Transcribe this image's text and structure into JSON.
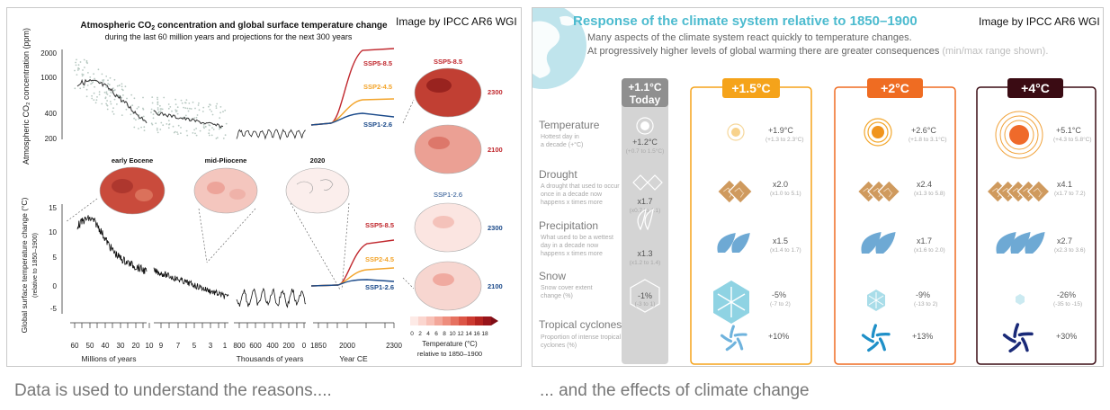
{
  "left": {
    "title_line1": "Atmospheric CO",
    "title_sub": "2",
    "title_line1_rest": " concentration and global surface temperature change",
    "title_line2": "during the last 60 million years and projections for the next 300 years",
    "credit": "Image by IPCC AR6 WGI",
    "co2_axis_label": "Atmospheric CO₂ concentration (ppm)",
    "co2_ticks": [
      "2000",
      "1000",
      "400",
      "200"
    ],
    "temp_axis_label": "Global surface temperature change (°C)",
    "temp_axis_sublabel": "(relative to 1850–1900)",
    "temp_ticks": [
      "15",
      "10",
      "5",
      "0",
      "-5"
    ],
    "periods": [
      "early Eocene",
      "mid-Pliocene",
      "2020"
    ],
    "scenarios_co2": [
      "SSP5-8.5",
      "SSP2-4.5",
      "SSP1-2.6"
    ],
    "scenarios_temp": [
      "SSP5-8.5",
      "SSP2-4.5",
      "SSP1-2.6"
    ],
    "map_scenario_top": "SSP5-8.5",
    "map_scenario_bottom": "SSP1-2.6",
    "map_years": [
      "2300",
      "2100",
      "2300",
      "2100"
    ],
    "x_ticks_myr": [
      "60",
      "50",
      "40",
      "30",
      "20",
      "10"
    ],
    "x_ticks_myr2": [
      "9",
      "7",
      "5",
      "3",
      "1"
    ],
    "x_ticks_kyr": [
      "800",
      "600",
      "400",
      "200",
      "0"
    ],
    "x_ticks_ce": [
      "1850",
      "2000",
      "2300"
    ],
    "x_label_myr": "Millions of years",
    "x_label_kyr": "Thousands of years",
    "x_label_ce": "Year CE",
    "colorbar_ticks": [
      "0",
      "2",
      "4",
      "6",
      "8",
      "10",
      "12",
      "14",
      "16",
      "18"
    ],
    "colorbar_label": "Temperature (°C)",
    "colorbar_sublabel": "relative to 1850–1900",
    "colors": {
      "ssp585": "#c0272d",
      "ssp245": "#f3a42a",
      "ssp126": "#1b4a8a"
    }
  },
  "right": {
    "title": "Response of the climate system relative to 1850–1900",
    "subtitle1": "Many aspects of the climate system react quickly to temperature changes.",
    "subtitle2": "At progressively higher levels of global warming there are greater consequences",
    "subtitle2_note": " (min/max range shown).",
    "credit": "Image by IPCC AR6 WGI",
    "today": {
      "value": "+1.1°C",
      "label": "Today"
    },
    "columns": [
      {
        "label": "+1.5°C",
        "color": "#f5a31a"
      },
      {
        "label": "+2°C",
        "color": "#ef6c22"
      },
      {
        "label": "+4°C",
        "color": "#3a0b13"
      }
    ],
    "rows": [
      {
        "title": "Temperature",
        "desc": [
          "Hottest day in",
          "a decade (+°C)"
        ],
        "icon": "sun-icon",
        "today": {
          "v": "+1.2°C",
          "r": "(+0.7 to 1.5°C)"
        },
        "vals": [
          {
            "v": "+1.9°C",
            "r": "(+1.3 to 2.3°C)"
          },
          {
            "v": "+2.6°C",
            "r": "(+1.8 to 3.1°C)"
          },
          {
            "v": "+5.1°C",
            "r": "(+4.3 to 5.8°C)"
          }
        ]
      },
      {
        "title": "Drought",
        "desc": [
          "A drought that used to occur",
          "once in a decade now",
          "happens x times more"
        ],
        "icon": "dry-soil-icon",
        "today": {
          "v": "x1.7",
          "r": "(x0.7 to 4.1)"
        },
        "vals": [
          {
            "v": "x2.0",
            "r": "(x1.0 to 5.1)"
          },
          {
            "v": "x2.4",
            "r": "(x1.3 to 5.8)"
          },
          {
            "v": "x4.1",
            "r": "(x1.7 to 7.2)"
          }
        ]
      },
      {
        "title": "Precipitation",
        "desc": [
          "What used to be a wettest",
          "day in a decade now",
          "happens x times more"
        ],
        "icon": "raindrop-icon",
        "today": {
          "v": "x1.3",
          "r": "(x1.2 to 1.4)"
        },
        "vals": [
          {
            "v": "x1.5",
            "r": "(x1.4 to 1.7)"
          },
          {
            "v": "x1.7",
            "r": "(x1.6 to 2.0)"
          },
          {
            "v": "x2.7",
            "r": "(x2.3 to 3.6)"
          }
        ]
      },
      {
        "title": "Snow",
        "desc": [
          "Snow cover extent",
          "change (%)"
        ],
        "icon": "snowflake-icon",
        "today": {
          "v": "-1%",
          "r": "(-3 to 1)"
        },
        "vals": [
          {
            "v": "-5%",
            "r": "(-7 to 2)"
          },
          {
            "v": "-9%",
            "r": "(-13 to 2)"
          },
          {
            "v": "-26%",
            "r": "(-35 to -15)"
          }
        ]
      },
      {
        "title": "Tropical cyclones",
        "desc": [
          "Proportion of intense tropical",
          "cyclones (%)"
        ],
        "icon": "cyclone-icon",
        "today": null,
        "vals": [
          {
            "v": "+10%",
            "r": ""
          },
          {
            "v": "+13%",
            "r": ""
          },
          {
            "v": "+30%",
            "r": ""
          }
        ]
      }
    ]
  },
  "captions": {
    "left": "Data is used to understand the reasons....",
    "right": "... and the effects of climate change"
  }
}
